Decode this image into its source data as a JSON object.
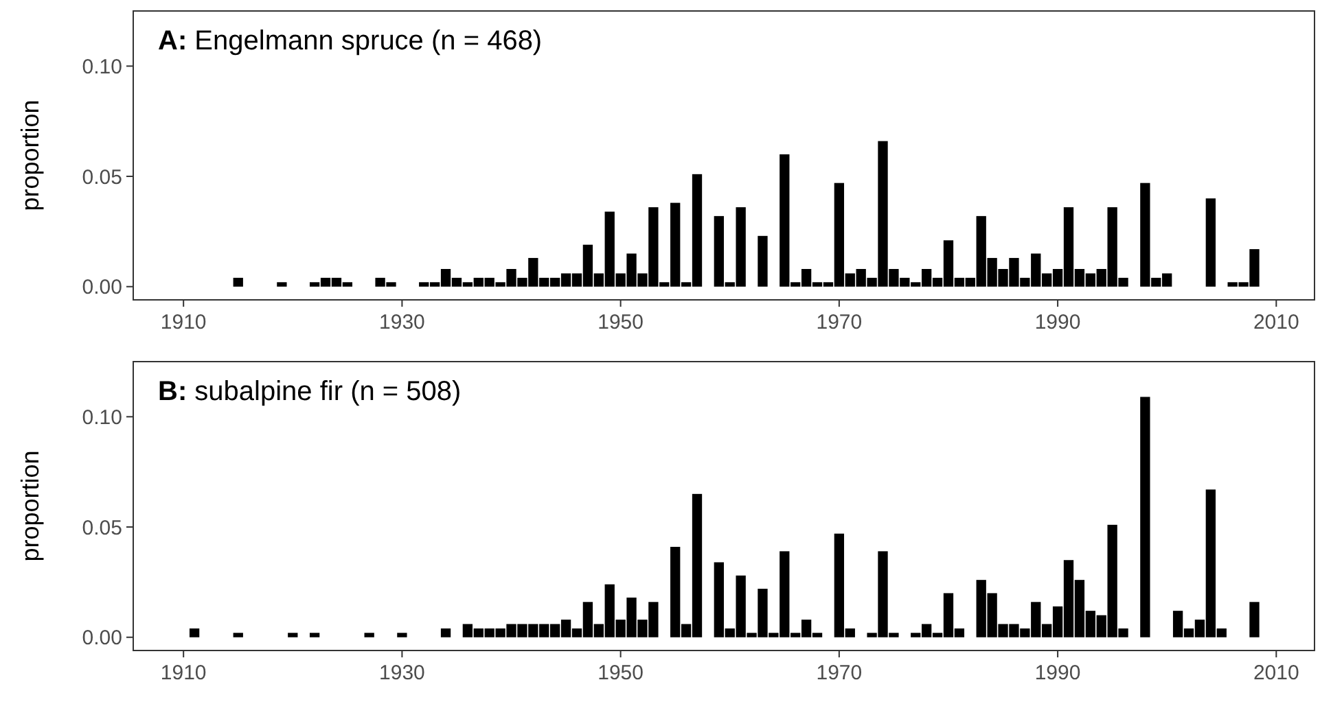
{
  "chart_data": [
    {
      "type": "bar",
      "title": "A: Engelmann spruce (n = 468)",
      "ylabel": "proportion",
      "color": "#000000",
      "grid": false,
      "x": [
        1915,
        1919,
        1922,
        1923,
        1924,
        1925,
        1928,
        1929,
        1932,
        1933,
        1934,
        1935,
        1936,
        1937,
        1938,
        1939,
        1940,
        1941,
        1942,
        1943,
        1944,
        1945,
        1946,
        1947,
        1948,
        1949,
        1950,
        1951,
        1952,
        1953,
        1954,
        1955,
        1956,
        1957,
        1959,
        1960,
        1961,
        1963,
        1965,
        1966,
        1967,
        1968,
        1969,
        1970,
        1971,
        1972,
        1973,
        1974,
        1975,
        1976,
        1977,
        1978,
        1979,
        1980,
        1981,
        1982,
        1983,
        1984,
        1985,
        1986,
        1987,
        1988,
        1989,
        1990,
        1991,
        1992,
        1993,
        1994,
        1995,
        1996,
        1998,
        1999,
        2000,
        2004,
        2006,
        2007,
        2008
      ],
      "values": [
        0.004,
        0.002,
        0.002,
        0.004,
        0.004,
        0.002,
        0.004,
        0.002,
        0.002,
        0.002,
        0.008,
        0.004,
        0.002,
        0.004,
        0.004,
        0.002,
        0.008,
        0.004,
        0.013,
        0.004,
        0.004,
        0.006,
        0.006,
        0.019,
        0.006,
        0.034,
        0.006,
        0.015,
        0.006,
        0.036,
        0.002,
        0.038,
        0.002,
        0.051,
        0.032,
        0.002,
        0.036,
        0.023,
        0.06,
        0.002,
        0.008,
        0.002,
        0.002,
        0.047,
        0.006,
        0.008,
        0.004,
        0.066,
        0.008,
        0.004,
        0.002,
        0.008,
        0.004,
        0.021,
        0.004,
        0.004,
        0.032,
        0.013,
        0.008,
        0.013,
        0.004,
        0.015,
        0.006,
        0.008,
        0.036,
        0.008,
        0.006,
        0.008,
        0.036,
        0.004,
        0.047,
        0.004,
        0.006,
        0.04,
        0.002,
        0.002,
        0.017
      ],
      "xlim": [
        1905.4,
        2013.5
      ],
      "xticks": [
        1910,
        1930,
        1950,
        1970,
        1990,
        2010
      ],
      "ylim": [
        -0.006,
        0.125
      ],
      "yticks": [
        {
          "value": 0,
          "label": "0.00"
        },
        {
          "value": 0.05,
          "label": "0.05"
        },
        {
          "value": 0.1,
          "label": "0.10"
        }
      ]
    },
    {
      "type": "bar",
      "title": "B: subalpine fir (n = 508)",
      "ylabel": "proportion",
      "color": "#000000",
      "grid": false,
      "x": [
        1911,
        1915,
        1920,
        1922,
        1927,
        1930,
        1934,
        1936,
        1937,
        1938,
        1939,
        1940,
        1941,
        1942,
        1943,
        1944,
        1945,
        1946,
        1947,
        1948,
        1949,
        1950,
        1951,
        1952,
        1953,
        1955,
        1956,
        1957,
        1959,
        1960,
        1961,
        1962,
        1963,
        1964,
        1965,
        1966,
        1967,
        1968,
        1970,
        1971,
        1973,
        1974,
        1975,
        1977,
        1978,
        1979,
        1980,
        1981,
        1983,
        1984,
        1985,
        1986,
        1987,
        1988,
        1989,
        1990,
        1991,
        1992,
        1993,
        1994,
        1995,
        1996,
        1998,
        2001,
        2002,
        2003,
        2004,
        2005,
        2008
      ],
      "values": [
        0.004,
        0.002,
        0.002,
        0.002,
        0.002,
        0.002,
        0.004,
        0.006,
        0.004,
        0.004,
        0.004,
        0.006,
        0.006,
        0.006,
        0.006,
        0.006,
        0.008,
        0.004,
        0.016,
        0.006,
        0.024,
        0.008,
        0.018,
        0.008,
        0.016,
        0.041,
        0.006,
        0.065,
        0.034,
        0.004,
        0.028,
        0.002,
        0.022,
        0.002,
        0.039,
        0.002,
        0.008,
        0.002,
        0.047,
        0.004,
        0.002,
        0.039,
        0.002,
        0.002,
        0.006,
        0.002,
        0.02,
        0.004,
        0.026,
        0.02,
        0.006,
        0.006,
        0.004,
        0.016,
        0.006,
        0.014,
        0.035,
        0.026,
        0.012,
        0.01,
        0.051,
        0.004,
        0.109,
        0.012,
        0.004,
        0.008,
        0.067,
        0.004,
        0.016
      ],
      "xlim": [
        1905.4,
        2013.5
      ],
      "xticks": [
        1910,
        1930,
        1950,
        1970,
        1990,
        2010
      ],
      "ylim": [
        -0.006,
        0.125
      ],
      "yticks": [
        {
          "value": 0,
          "label": "0.00"
        },
        {
          "value": 0.05,
          "label": "0.05"
        },
        {
          "value": 0.1,
          "label": "0.10"
        }
      ]
    }
  ]
}
